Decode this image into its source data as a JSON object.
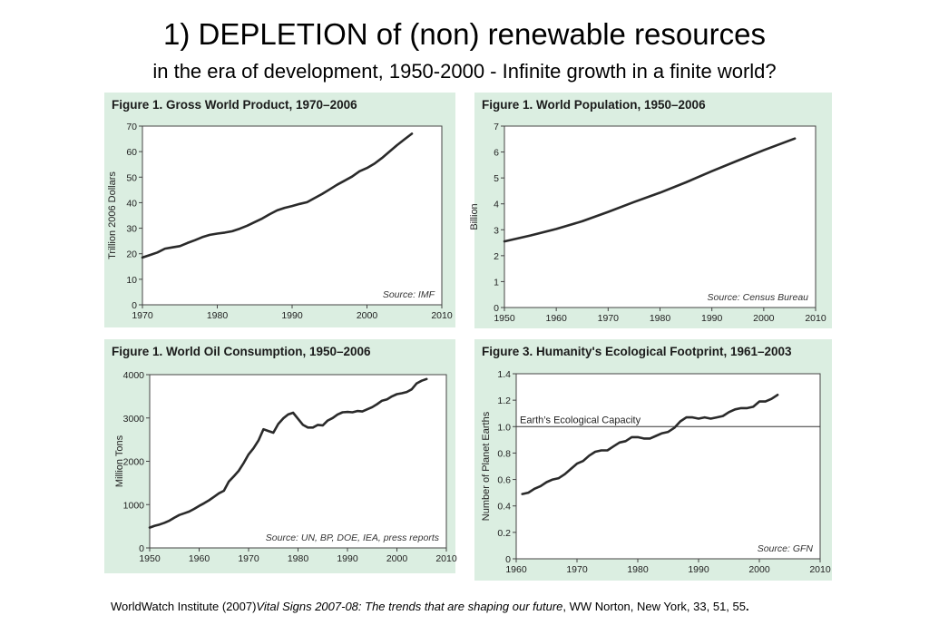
{
  "slide": {
    "title": "1)  DEPLETION of (non) renewable resources",
    "subtitle": "in the era of development, 1950-2000 - Infinite growth in a finite world?"
  },
  "footer": {
    "prefix": "WorldWatch Institute (2007)",
    "italic": "Vital Signs 2007-08: The trends that are shaping our future",
    "suffix": ", WW Norton, New York, 33, 51, 55",
    "end": "."
  },
  "chart_data": [
    {
      "type": "line",
      "title": "Figure 1. Gross World Product, 1970–2006",
      "xlabel": "",
      "ylabel": "Trillion 2006 Dollars",
      "xlim": [
        1970,
        2010
      ],
      "ylim": [
        0,
        70
      ],
      "xticks": [
        1970,
        1980,
        1990,
        2000,
        2010
      ],
      "yticks": [
        0,
        10,
        20,
        30,
        40,
        50,
        60,
        70
      ],
      "source": "Source: IMF",
      "x": [
        1970,
        1971,
        1972,
        1973,
        1974,
        1975,
        1976,
        1977,
        1978,
        1979,
        1980,
        1981,
        1982,
        1983,
        1984,
        1985,
        1986,
        1987,
        1988,
        1989,
        1990,
        1991,
        1992,
        1993,
        1994,
        1995,
        1996,
        1997,
        1998,
        1999,
        2000,
        2001,
        2002,
        2003,
        2004,
        2005,
        2006
      ],
      "y": [
        18.5,
        19.5,
        20.5,
        22,
        22.5,
        23,
        24.2,
        25.3,
        26.5,
        27.4,
        27.9,
        28.3,
        28.8,
        29.8,
        31,
        32.4,
        33.8,
        35.5,
        37,
        38,
        38.7,
        39.5,
        40.2,
        41.8,
        43.4,
        45.2,
        47,
        48.6,
        50.2,
        52.3,
        53.6,
        55.3,
        57.5,
        60,
        62.5,
        64.8,
        67
      ]
    },
    {
      "type": "line",
      "title": "Figure 1. World Population, 1950–2006",
      "xlabel": "",
      "ylabel": "Billion",
      "xlim": [
        1950,
        2010
      ],
      "ylim": [
        0,
        7
      ],
      "xticks": [
        1950,
        1960,
        1970,
        1980,
        1990,
        2000,
        2010
      ],
      "yticks": [
        0,
        1,
        2,
        3,
        4,
        5,
        6,
        7
      ],
      "source": "Source: Census Bureau",
      "x": [
        1950,
        1955,
        1960,
        1965,
        1970,
        1975,
        1980,
        1985,
        1990,
        1995,
        2000,
        2006
      ],
      "y": [
        2.55,
        2.78,
        3.03,
        3.33,
        3.69,
        4.07,
        4.43,
        4.83,
        5.26,
        5.67,
        6.07,
        6.52
      ]
    },
    {
      "type": "line",
      "title": "Figure 1. World Oil Consumption, 1950–2006",
      "xlabel": "",
      "ylabel": "Million Tons",
      "xlim": [
        1950,
        2010
      ],
      "ylim": [
        0,
        4000
      ],
      "xticks": [
        1950,
        1960,
        1970,
        1980,
        1990,
        2000,
        2010
      ],
      "yticks": [
        0,
        1000,
        2000,
        3000,
        4000
      ],
      "source": "Source: UN, BP, DOE, IEA, press reports",
      "x": [
        1950,
        1951,
        1952,
        1953,
        1954,
        1955,
        1956,
        1957,
        1958,
        1959,
        1960,
        1961,
        1962,
        1963,
        1964,
        1965,
        1966,
        1967,
        1968,
        1969,
        1970,
        1971,
        1972,
        1973,
        1974,
        1975,
        1976,
        1977,
        1978,
        1979,
        1980,
        1981,
        1982,
        1983,
        1984,
        1985,
        1986,
        1987,
        1988,
        1989,
        1990,
        1991,
        1992,
        1993,
        1994,
        1995,
        1996,
        1997,
        1998,
        1999,
        2000,
        2001,
        2002,
        2003,
        2004,
        2005,
        2006
      ],
      "y": [
        470,
        510,
        540,
        580,
        630,
        700,
        760,
        800,
        840,
        900,
        970,
        1030,
        1100,
        1180,
        1260,
        1320,
        1530,
        1650,
        1780,
        1960,
        2160,
        2300,
        2480,
        2740,
        2700,
        2660,
        2860,
        2990,
        3080,
        3120,
        2980,
        2840,
        2780,
        2780,
        2840,
        2830,
        2940,
        3000,
        3080,
        3130,
        3140,
        3130,
        3160,
        3150,
        3200,
        3250,
        3320,
        3400,
        3430,
        3500,
        3550,
        3570,
        3600,
        3660,
        3800,
        3860,
        3900
      ]
    },
    {
      "type": "line",
      "title": "Figure 3. Humanity's Ecological Footprint, 1961–2003",
      "xlabel": "",
      "ylabel": "Number of Planet Earths",
      "xlim": [
        1960,
        2010
      ],
      "ylim": [
        0,
        1.4
      ],
      "xticks": [
        1960,
        1970,
        1980,
        1990,
        2000,
        2010
      ],
      "yticks": [
        0,
        0.2,
        0.4,
        0.6,
        0.8,
        1.0,
        1.2,
        1.4
      ],
      "ytick_labels": [
        "0",
        "0.2",
        "0.4",
        "0.6",
        "0.8",
        "1.0",
        "1.2",
        "1.4"
      ],
      "source": "Source: GFN",
      "reference_line": {
        "value": 1.0,
        "label": "Earth’s Ecological Capacity"
      },
      "x": [
        1961,
        1962,
        1963,
        1964,
        1965,
        1966,
        1967,
        1968,
        1969,
        1970,
        1971,
        1972,
        1973,
        1974,
        1975,
        1976,
        1977,
        1978,
        1979,
        1980,
        1981,
        1982,
        1983,
        1984,
        1985,
        1986,
        1987,
        1988,
        1989,
        1990,
        1991,
        1992,
        1993,
        1994,
        1995,
        1996,
        1997,
        1998,
        1999,
        2000,
        2001,
        2002,
        2003
      ],
      "y": [
        0.49,
        0.5,
        0.53,
        0.55,
        0.58,
        0.6,
        0.61,
        0.64,
        0.68,
        0.72,
        0.74,
        0.78,
        0.81,
        0.82,
        0.82,
        0.85,
        0.88,
        0.89,
        0.92,
        0.92,
        0.91,
        0.91,
        0.93,
        0.95,
        0.96,
        0.99,
        1.04,
        1.07,
        1.07,
        1.06,
        1.07,
        1.06,
        1.07,
        1.08,
        1.11,
        1.13,
        1.14,
        1.14,
        1.15,
        1.19,
        1.19,
        1.21,
        1.24
      ]
    }
  ]
}
